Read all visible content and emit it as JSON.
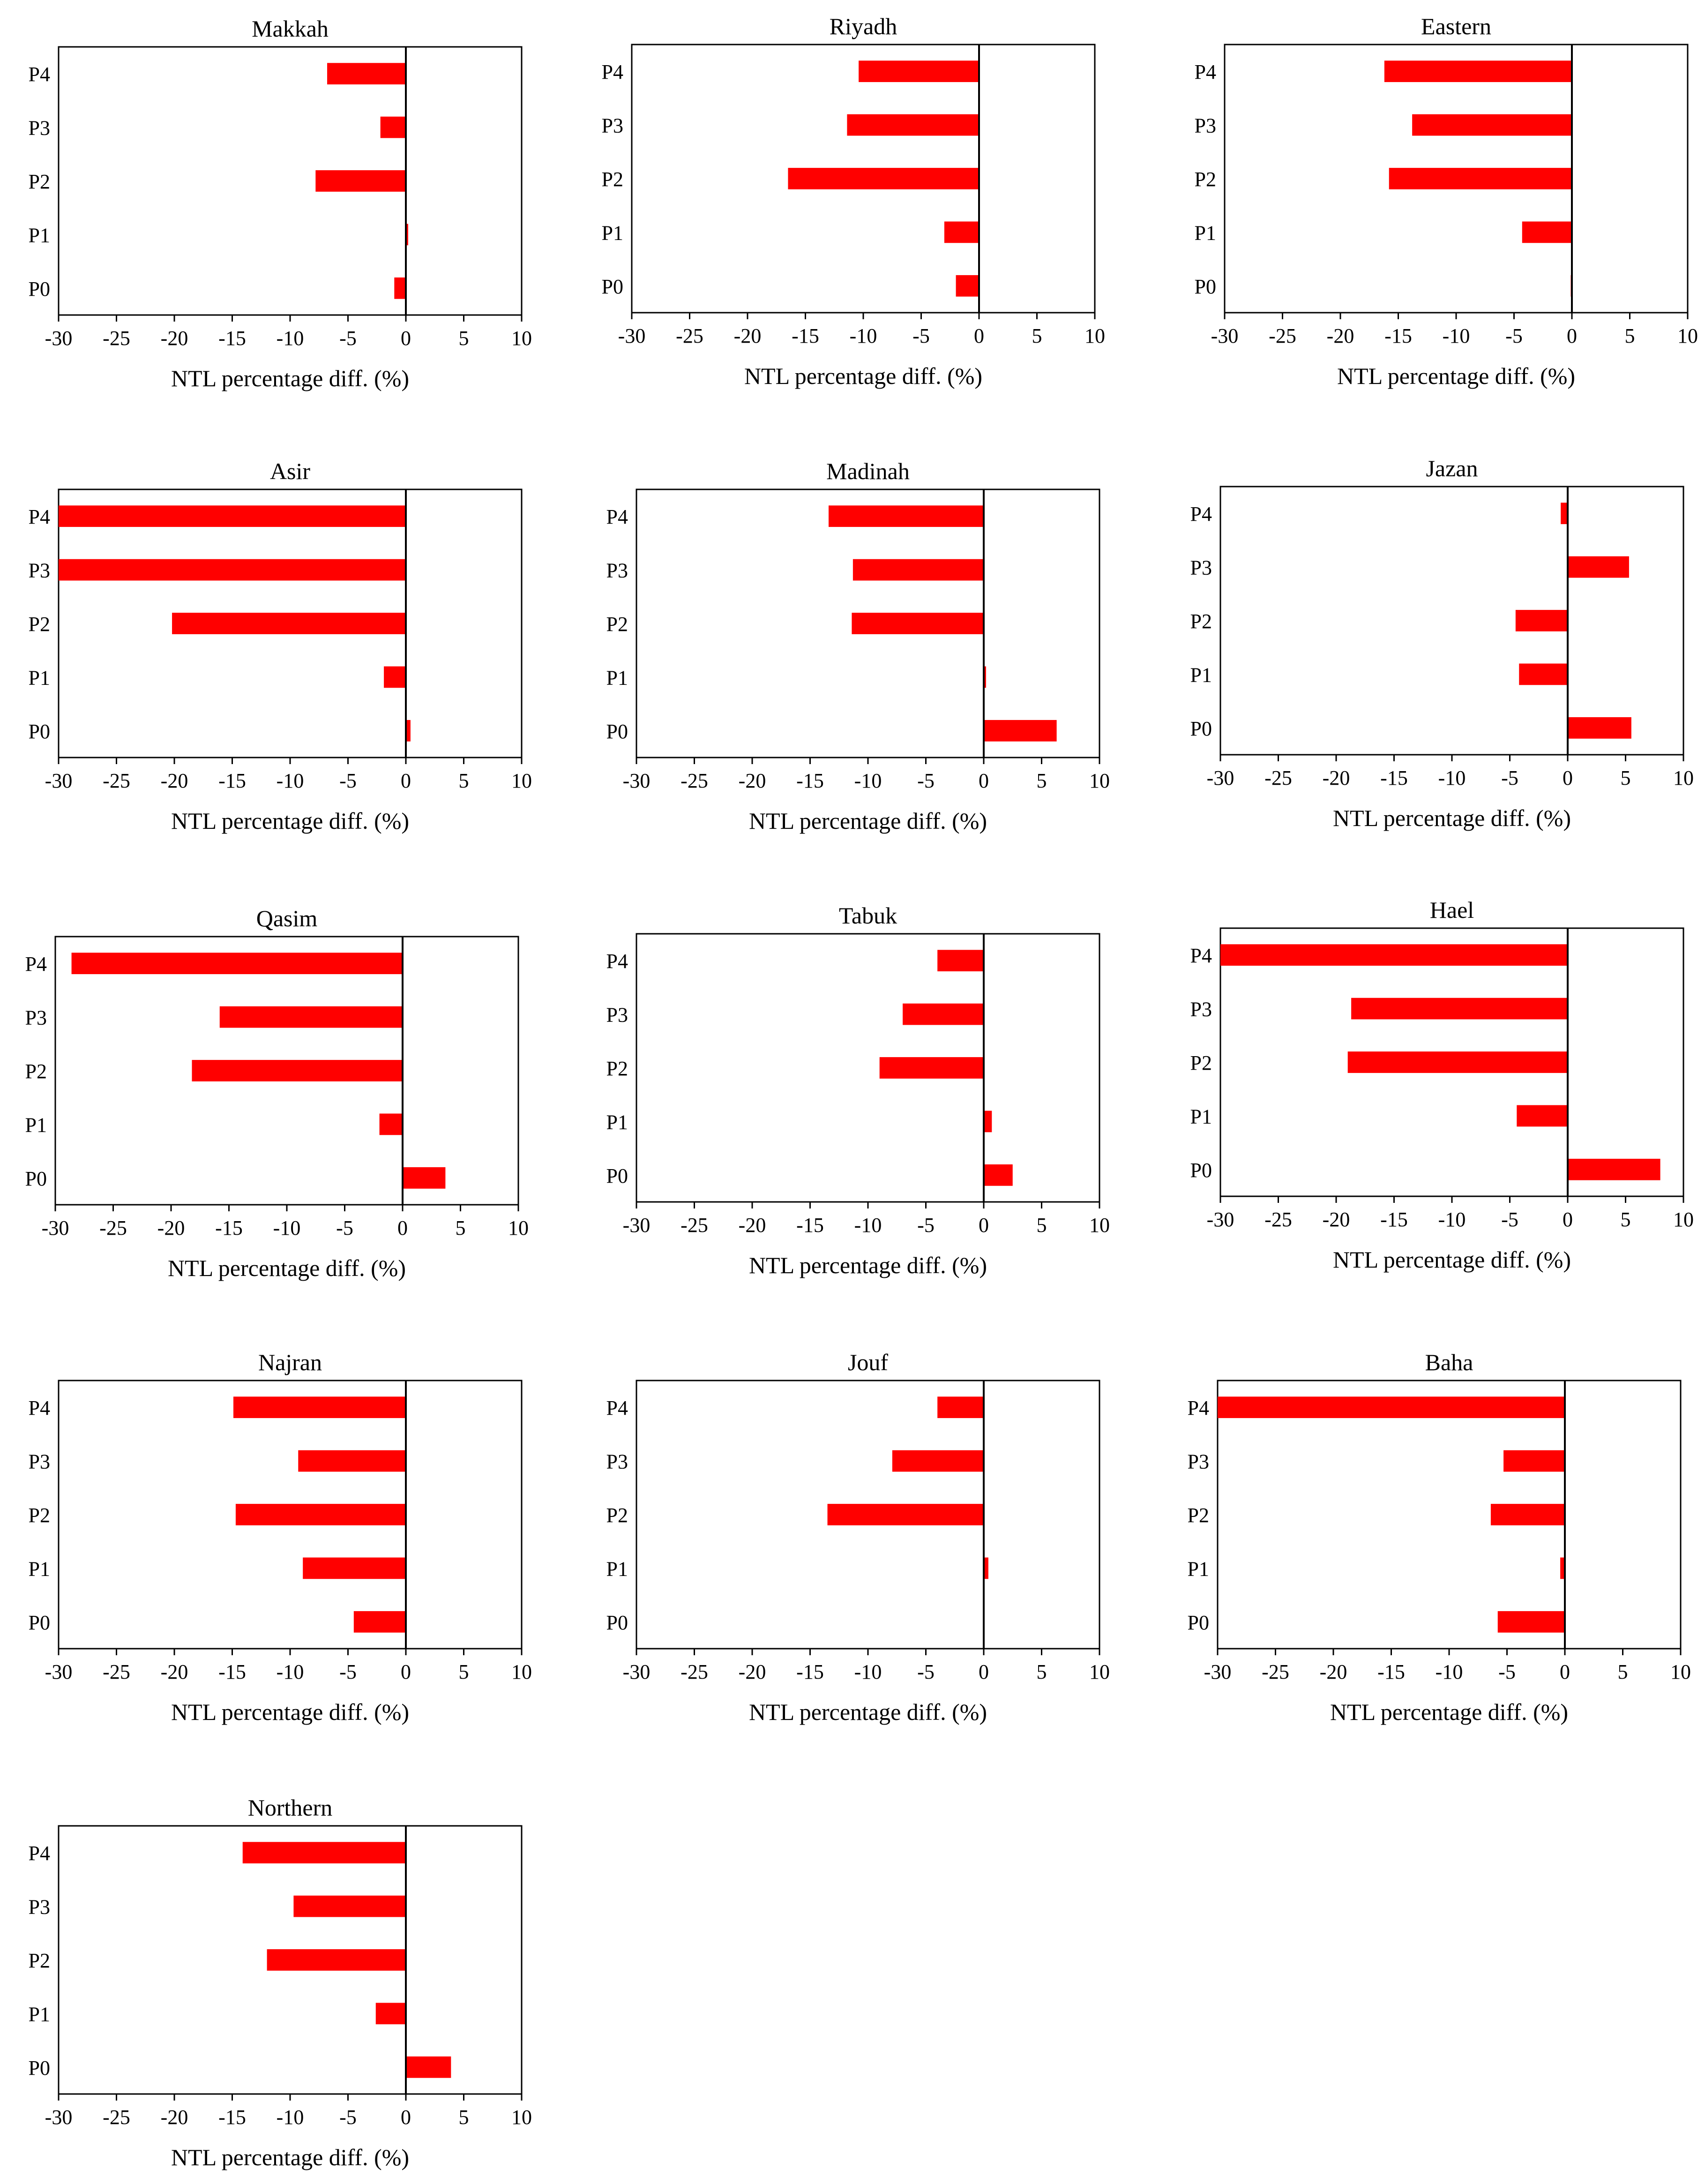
{
  "figure": {
    "bar_color": "#FF0000",
    "axis_color": "#000000",
    "background": "#FFFFFF"
  },
  "chart_data": [
    {
      "type": "bar",
      "orientation": "horizontal",
      "title": "Makkah",
      "categories": [
        "P4",
        "P3",
        "P2",
        "P1",
        "P0"
      ],
      "values": [
        -6.8,
        -2.2,
        -7.8,
        0.2,
        -1.0
      ],
      "xlabel": "NTL percentage  diff. (%)",
      "xlim": [
        -30,
        10
      ],
      "xticks": [
        -30,
        -25,
        -20,
        -15,
        -10,
        -5,
        0,
        5,
        10
      ]
    },
    {
      "type": "bar",
      "orientation": "horizontal",
      "title": "Riyadh",
      "categories": [
        "P4",
        "P3",
        "P2",
        "P1",
        "P0"
      ],
      "values": [
        -10.4,
        -11.4,
        -16.5,
        -3.0,
        -2.0
      ],
      "xlabel": "NTL percentage  diff. (%)",
      "xlim": [
        -30,
        10
      ],
      "xticks": [
        -30,
        -25,
        -20,
        -15,
        -10,
        -5,
        0,
        5,
        10
      ]
    },
    {
      "type": "bar",
      "orientation": "horizontal",
      "title": "Eastern",
      "categories": [
        "P4",
        "P3",
        "P2",
        "P1",
        "P0"
      ],
      "values": [
        -16.2,
        -13.8,
        -15.8,
        -4.3,
        -0.1
      ],
      "xlabel": "NTL percentage  diff. (%)",
      "xlim": [
        -30,
        10
      ],
      "xticks": [
        -30,
        -25,
        -20,
        -15,
        -10,
        -5,
        0,
        5,
        10
      ]
    },
    {
      "type": "bar",
      "orientation": "horizontal",
      "title": "Asir",
      "categories": [
        "P4",
        "P3",
        "P2",
        "P1",
        "P0"
      ],
      "values": [
        -30,
        -30,
        -20.2,
        -1.9,
        0.4
      ],
      "xlabel": "NTL percentage  diff. (%)",
      "xlim": [
        -30,
        10
      ],
      "xticks": [
        -30,
        -25,
        -20,
        -15,
        -10,
        -5,
        0,
        5,
        10
      ]
    },
    {
      "type": "bar",
      "orientation": "horizontal",
      "title": "Madinah",
      "categories": [
        "P4",
        "P3",
        "P2",
        "P1",
        "P0"
      ],
      "values": [
        -13.4,
        -11.3,
        -11.4,
        0.2,
        6.3
      ],
      "xlabel": "NTL percentage  diff. (%)",
      "xlim": [
        -30,
        10
      ],
      "xticks": [
        -30,
        -25,
        -20,
        -15,
        -10,
        -5,
        0,
        5,
        10
      ]
    },
    {
      "type": "bar",
      "orientation": "horizontal",
      "title": "Jazan",
      "categories": [
        "P4",
        "P3",
        "P2",
        "P1",
        "P0"
      ],
      "values": [
        -0.6,
        5.3,
        -4.5,
        -4.2,
        5.5
      ],
      "xlabel": "NTL percentage  diff. (%)",
      "xlim": [
        -30,
        10
      ],
      "xticks": [
        -30,
        -25,
        -20,
        -15,
        -10,
        -5,
        0,
        5,
        10
      ]
    },
    {
      "type": "bar",
      "orientation": "horizontal",
      "title": "Qasim",
      "categories": [
        "P4",
        "P3",
        "P2",
        "P1",
        "P0"
      ],
      "values": [
        -28.6,
        -15.8,
        -18.2,
        -2.0,
        3.7
      ],
      "xlabel": "NTL percentage  diff. (%)",
      "xlim": [
        -30,
        10
      ],
      "xticks": [
        -30,
        -25,
        -20,
        -15,
        -10,
        -5,
        0,
        5,
        10
      ]
    },
    {
      "type": "bar",
      "orientation": "horizontal",
      "title": "Tabuk",
      "categories": [
        "P4",
        "P3",
        "P2",
        "P1",
        "P0"
      ],
      "values": [
        -4.0,
        -7.0,
        -9.0,
        0.7,
        2.5
      ],
      "xlabel": "NTL percentage  diff. (%)",
      "xlim": [
        -30,
        10
      ],
      "xticks": [
        -30,
        -25,
        -20,
        -15,
        -10,
        -5,
        0,
        5,
        10
      ]
    },
    {
      "type": "bar",
      "orientation": "horizontal",
      "title": "Hael",
      "categories": [
        "P4",
        "P3",
        "P2",
        "P1",
        "P0"
      ],
      "values": [
        -30,
        -18.7,
        -19.0,
        -4.4,
        8.0
      ],
      "xlabel": "NTL percentage  diff. (%)",
      "xlim": [
        -30,
        10
      ],
      "xticks": [
        -30,
        -25,
        -20,
        -15,
        -10,
        -5,
        0,
        5,
        10
      ]
    },
    {
      "type": "bar",
      "orientation": "horizontal",
      "title": "Najran",
      "categories": [
        "P4",
        "P3",
        "P2",
        "P1",
        "P0"
      ],
      "values": [
        -14.9,
        -9.3,
        -14.7,
        -8.9,
        -4.5
      ],
      "xlabel": "NTL percentage  diff. (%)",
      "xlim": [
        -30,
        10
      ],
      "xticks": [
        -30,
        -25,
        -20,
        -15,
        -10,
        -5,
        0,
        5,
        10
      ]
    },
    {
      "type": "bar",
      "orientation": "horizontal",
      "title": "Jouf",
      "categories": [
        "P4",
        "P3",
        "P2",
        "P1",
        "P0"
      ],
      "values": [
        -4.0,
        -7.9,
        -13.5,
        0.4,
        0
      ],
      "xlabel": "NTL percentage  diff. (%)",
      "xlim": [
        -30,
        10
      ],
      "xticks": [
        -30,
        -25,
        -20,
        -15,
        -10,
        -5,
        0,
        5,
        10
      ]
    },
    {
      "type": "bar",
      "orientation": "horizontal",
      "title": "Baha",
      "categories": [
        "P4",
        "P3",
        "P2",
        "P1",
        "P0"
      ],
      "values": [
        -30,
        -5.3,
        -6.4,
        -0.4,
        -5.8
      ],
      "xlabel": "NTL percentage  diff. (%)",
      "xlim": [
        -30,
        10
      ],
      "xticks": [
        -30,
        -25,
        -20,
        -15,
        -10,
        -5,
        0,
        5,
        10
      ]
    },
    {
      "type": "bar",
      "orientation": "horizontal",
      "title": "Northern",
      "categories": [
        "P4",
        "P3",
        "P2",
        "P1",
        "P0"
      ],
      "values": [
        -14.1,
        -9.7,
        -12.0,
        -2.6,
        3.9
      ],
      "xlabel": "NTL percentage  diff. (%)",
      "xlim": [
        -30,
        10
      ],
      "xticks": [
        -30,
        -25,
        -20,
        -15,
        -10,
        -5,
        0,
        5,
        10
      ]
    }
  ]
}
